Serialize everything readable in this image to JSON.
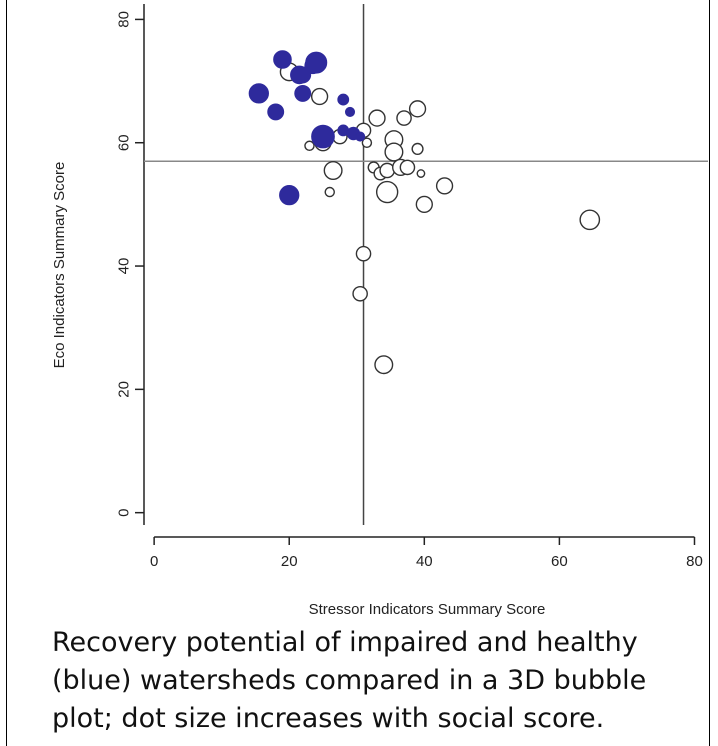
{
  "chart_data": {
    "type": "scatter",
    "title": "",
    "xlabel": "Stressor Indicators Summary Score",
    "ylabel": "Eco Indicators Summary Score",
    "xlim": [
      -1.5,
      82
    ],
    "ylim": [
      -2,
      82.5
    ],
    "x_ticks": [
      0,
      20,
      40,
      60,
      80
    ],
    "y_ticks": [
      0,
      20,
      40,
      60,
      80
    ],
    "reference_lines": {
      "x": 31,
      "y": 57
    },
    "grid": false,
    "colors": {
      "blue": "#2e2a9c",
      "open_stroke": "#333333",
      "axis": "#222222",
      "ref_vline": "#444444",
      "ref_hline": "#888888"
    },
    "series": [
      {
        "filled": true,
        "color": "#2e2a9c",
        "points": [
          {
            "x": 19,
            "y": 73.5,
            "size": 4.0
          },
          {
            "x": 21.5,
            "y": 71,
            "size": 4.0
          },
          {
            "x": 22,
            "y": 71,
            "size": 3.5
          },
          {
            "x": 24,
            "y": 73,
            "size": 5.0
          },
          {
            "x": 23.5,
            "y": 72.5,
            "size": 3.5
          },
          {
            "x": 15.5,
            "y": 68,
            "size": 4.5
          },
          {
            "x": 22,
            "y": 68,
            "size": 3.5
          },
          {
            "x": 18,
            "y": 65,
            "size": 3.5
          },
          {
            "x": 28,
            "y": 67,
            "size": 2.0
          },
          {
            "x": 29,
            "y": 65,
            "size": 1.5
          },
          {
            "x": 25,
            "y": 61,
            "size": 5.5
          },
          {
            "x": 28,
            "y": 62,
            "size": 2.0
          },
          {
            "x": 29.5,
            "y": 61.5,
            "size": 2.5
          },
          {
            "x": 30.5,
            "y": 61,
            "size": 1.5
          },
          {
            "x": 20,
            "y": 51.5,
            "size": 4.5
          }
        ]
      },
      {
        "filled": false,
        "color": "#ffffff",
        "points": [
          {
            "x": 20,
            "y": 71.5,
            "size": 4.0
          },
          {
            "x": 24.5,
            "y": 67.5,
            "size": 3.5
          },
          {
            "x": 25,
            "y": 60,
            "size": 3.5
          },
          {
            "x": 23,
            "y": 59.5,
            "size": 1.5
          },
          {
            "x": 27.5,
            "y": 61,
            "size": 3.0
          },
          {
            "x": 31,
            "y": 62,
            "size": 3.0
          },
          {
            "x": 33,
            "y": 64,
            "size": 3.5
          },
          {
            "x": 31.5,
            "y": 60,
            "size": 1.5
          },
          {
            "x": 35.5,
            "y": 60.5,
            "size": 4.0
          },
          {
            "x": 35.5,
            "y": 58.5,
            "size": 4.0
          },
          {
            "x": 37,
            "y": 64,
            "size": 3.0
          },
          {
            "x": 39,
            "y": 65.5,
            "size": 3.5
          },
          {
            "x": 39,
            "y": 59,
            "size": 2.0
          },
          {
            "x": 32.5,
            "y": 56,
            "size": 2.0
          },
          {
            "x": 33.5,
            "y": 55,
            "size": 2.5
          },
          {
            "x": 34.5,
            "y": 55.5,
            "size": 3.0
          },
          {
            "x": 36.5,
            "y": 56,
            "size": 3.5
          },
          {
            "x": 37.5,
            "y": 56,
            "size": 3.0
          },
          {
            "x": 39.5,
            "y": 55,
            "size": 1.0
          },
          {
            "x": 26.5,
            "y": 55.5,
            "size": 4.0
          },
          {
            "x": 34.5,
            "y": 52,
            "size": 5.0
          },
          {
            "x": 43,
            "y": 53,
            "size": 3.5
          },
          {
            "x": 40,
            "y": 50,
            "size": 3.5
          },
          {
            "x": 26,
            "y": 52,
            "size": 1.5
          },
          {
            "x": 64.5,
            "y": 47.5,
            "size": 4.5
          },
          {
            "x": 31,
            "y": 42,
            "size": 3.0
          },
          {
            "x": 30.5,
            "y": 35.5,
            "size": 3.0
          },
          {
            "x": 34,
            "y": 24,
            "size": 4.0
          }
        ]
      }
    ]
  },
  "caption": "Recovery potential of impaired and healthy (blue) watersheds compared in a 3D bubble plot; dot size increases with social score."
}
